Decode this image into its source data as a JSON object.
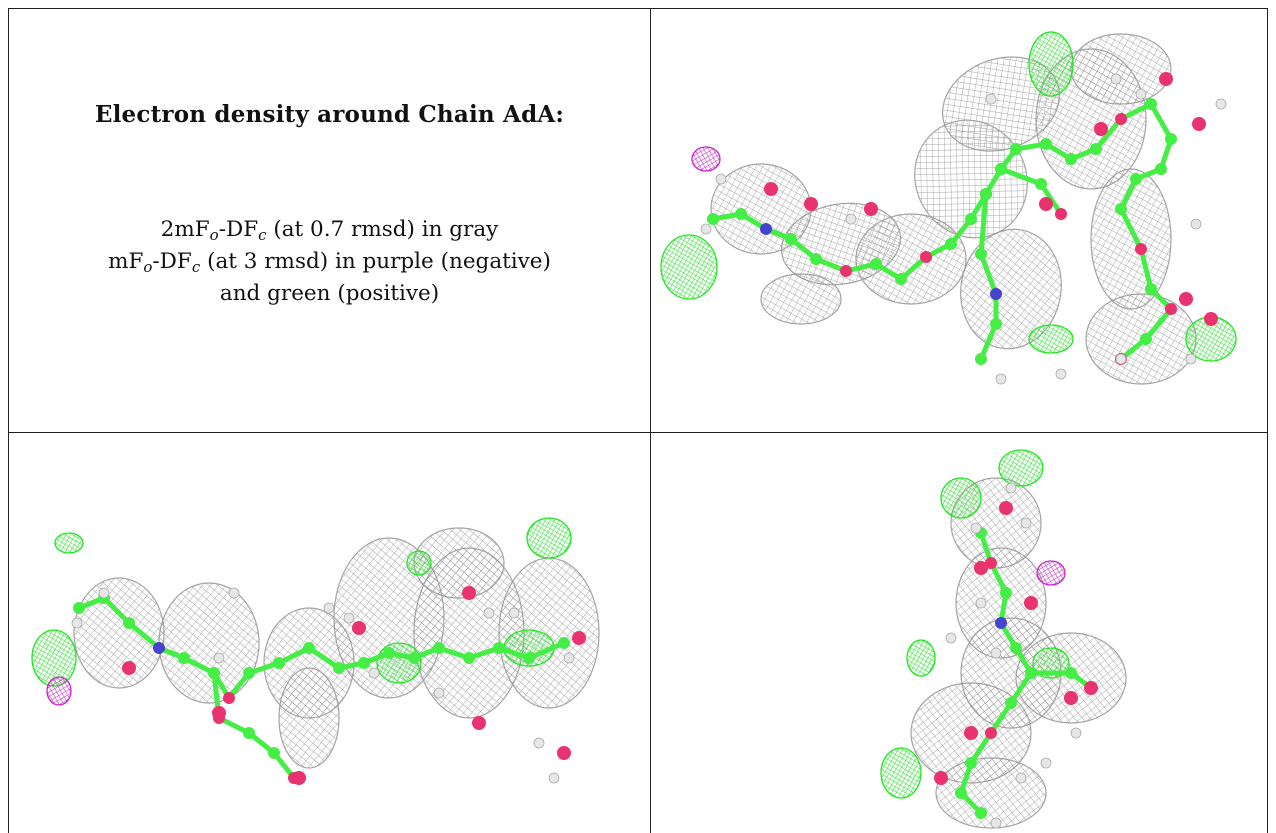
{
  "caption": {
    "title": "Electron density around Chain AdA:",
    "line1": {
      "prefix": "2mF",
      "sub_o": "o",
      "mid": "-DF",
      "sub_c": "c",
      "suffix": " (at 0.7 rmsd) in gray"
    },
    "line2": {
      "prefix": "mF",
      "sub_o": "o",
      "mid": "-DF",
      "sub_c": "c",
      "suffix": " (at 3 rmsd) in purple (negative)"
    },
    "line3": "and green (positive)"
  },
  "colors": {
    "mesh_2fofc": "#9a9a9a",
    "positive_density": "#22e622",
    "negative_density": "#cc22cc",
    "carbon": "#44ee44",
    "oxygen": "#e8336e",
    "nitrogen": "#4444cc",
    "hydrogen": "#e6e6e6"
  },
  "panels": [
    {
      "view": "top-right"
    },
    {
      "view": "bottom-left"
    },
    {
      "view": "bottom-right"
    }
  ]
}
